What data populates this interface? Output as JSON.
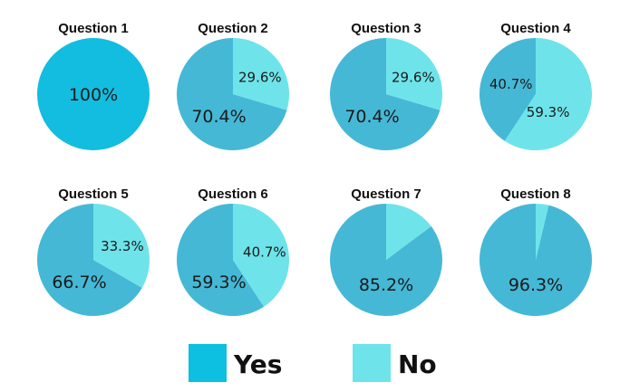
{
  "colors": {
    "yes": "#45b8d6",
    "yes_legend": "#0dbfe0",
    "yes_full": "#12bde0",
    "no": "#6ee4ea"
  },
  "legend": [
    {
      "key": "yes",
      "label": "Yes"
    },
    {
      "key": "no",
      "label": "No"
    }
  ],
  "chart_data": [
    {
      "type": "pie",
      "title": "Question 1",
      "slices": [
        {
          "name": "Yes",
          "value": 100,
          "label": "100%"
        }
      ]
    },
    {
      "type": "pie",
      "title": "Question 2",
      "slices": [
        {
          "name": "Yes",
          "value": 70.4,
          "label": "70.4%"
        },
        {
          "name": "No",
          "value": 29.6,
          "label": "29.6%"
        }
      ]
    },
    {
      "type": "pie",
      "title": "Question 3",
      "slices": [
        {
          "name": "Yes",
          "value": 70.4,
          "label": "70.4%"
        },
        {
          "name": "No",
          "value": 29.6,
          "label": "29.6%"
        }
      ]
    },
    {
      "type": "pie",
      "title": "Question 4",
      "slices": [
        {
          "name": "Yes",
          "value": 40.7,
          "label": "40.7%"
        },
        {
          "name": "No",
          "value": 59.3,
          "label": "59.3%"
        }
      ]
    },
    {
      "type": "pie",
      "title": "Question 5",
      "slices": [
        {
          "name": "Yes",
          "value": 66.7,
          "label": "66.7%"
        },
        {
          "name": "No",
          "value": 33.3,
          "label": "33.3%"
        }
      ]
    },
    {
      "type": "pie",
      "title": "Question 6",
      "slices": [
        {
          "name": "Yes",
          "value": 59.3,
          "label": "59.3%"
        },
        {
          "name": "No",
          "value": 40.7,
          "label": "40.7%"
        }
      ]
    },
    {
      "type": "pie",
      "title": "Question 7",
      "slices": [
        {
          "name": "Yes",
          "value": 85.2,
          "label": "85.2%"
        },
        {
          "name": "No",
          "value": 14.8,
          "label": ""
        }
      ]
    },
    {
      "type": "pie",
      "title": "Question 8",
      "slices": [
        {
          "name": "Yes",
          "value": 96.3,
          "label": "96.3%"
        },
        {
          "name": "No",
          "value": 3.7,
          "label": ""
        }
      ]
    }
  ]
}
